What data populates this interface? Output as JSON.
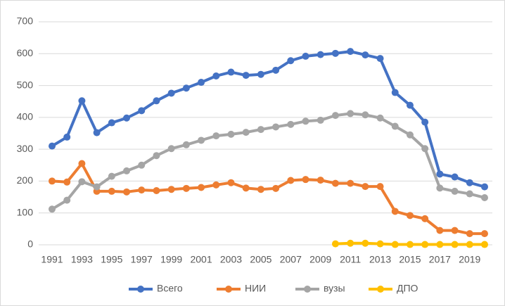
{
  "chart_data": {
    "type": "line",
    "categories": [
      "1991",
      null,
      "1993",
      null,
      "1995",
      null,
      "1997",
      null,
      "1999",
      null,
      "2001",
      null,
      "2003",
      null,
      "2005",
      null,
      "2007",
      null,
      "2009",
      null,
      "2011",
      null,
      "2013",
      null,
      "2015",
      null,
      "2017",
      null,
      "2019",
      null
    ],
    "series": [
      {
        "name": "Всего",
        "color": "#4472c4",
        "values": [
          310,
          338,
          452,
          352,
          383,
          398,
          421,
          452,
          476,
          492,
          510,
          530,
          542,
          532,
          535,
          548,
          578,
          592,
          597,
          601,
          607,
          596,
          585,
          478,
          438,
          385,
          222,
          213,
          195,
          182
        ]
      },
      {
        "name": "НИИ",
        "color": "#ed7d31",
        "values": [
          200,
          197,
          255,
          168,
          168,
          166,
          172,
          170,
          174,
          177,
          180,
          188,
          195,
          178,
          174,
          177,
          202,
          205,
          203,
          193,
          193,
          183,
          183,
          105,
          92,
          82,
          45,
          45,
          35,
          35
        ]
      },
      {
        "name": "вузы",
        "color": "#a5a5a5",
        "values": [
          112,
          140,
          198,
          182,
          215,
          232,
          250,
          280,
          302,
          314,
          328,
          342,
          347,
          353,
          362,
          370,
          378,
          388,
          391,
          406,
          412,
          408,
          398,
          372,
          345,
          302,
          178,
          168,
          160,
          148
        ]
      },
      {
        "name": "ДПО",
        "color": "#ffc000",
        "values": [
          null,
          null,
          null,
          null,
          null,
          null,
          null,
          null,
          null,
          null,
          null,
          null,
          null,
          null,
          null,
          null,
          null,
          null,
          null,
          3,
          5,
          5,
          3,
          1,
          1,
          1,
          1,
          1,
          1,
          1
        ]
      }
    ],
    "ylim": [
      0,
      700
    ],
    "yticks": [
      0,
      100,
      200,
      300,
      400,
      500,
      600,
      700
    ],
    "grid": true,
    "legend": "bottom"
  }
}
